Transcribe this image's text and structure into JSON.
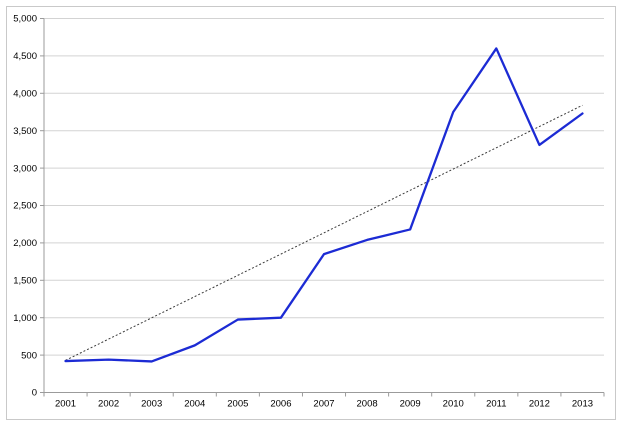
{
  "chart_data": {
    "type": "line",
    "title": "",
    "xlabel": "",
    "ylabel": "",
    "categories": [
      "2001",
      "2002",
      "2003",
      "2004",
      "2005",
      "2006",
      "2007",
      "2008",
      "2009",
      "2010",
      "2011",
      "2012",
      "2013"
    ],
    "series": [
      {
        "name": "main-series",
        "color": "#1c2bd4",
        "values": [
          420,
          440,
          415,
          630,
          975,
          1000,
          1850,
          2040,
          2180,
          3750,
          4600,
          3310,
          3730
        ]
      }
    ],
    "trendline": {
      "style": "dotted",
      "color": "#3a3a3a",
      "start_value": 430,
      "end_value": 3840
    },
    "ylim": [
      0,
      5000
    ],
    "ytick_step": 500,
    "ytick_labels": [
      "0",
      "500",
      "1,000",
      "1,500",
      "2,000",
      "2,500",
      "3,000",
      "3,500",
      "4,000",
      "4,500",
      "5,000"
    ],
    "grid": "horizontal",
    "legend": "none",
    "colors": {
      "gridline": "#d3d3d3",
      "axis": "#9b9b9b",
      "tick_label": "#000000",
      "frame_border": "#c9c9c9",
      "background": "#ffffff"
    }
  }
}
